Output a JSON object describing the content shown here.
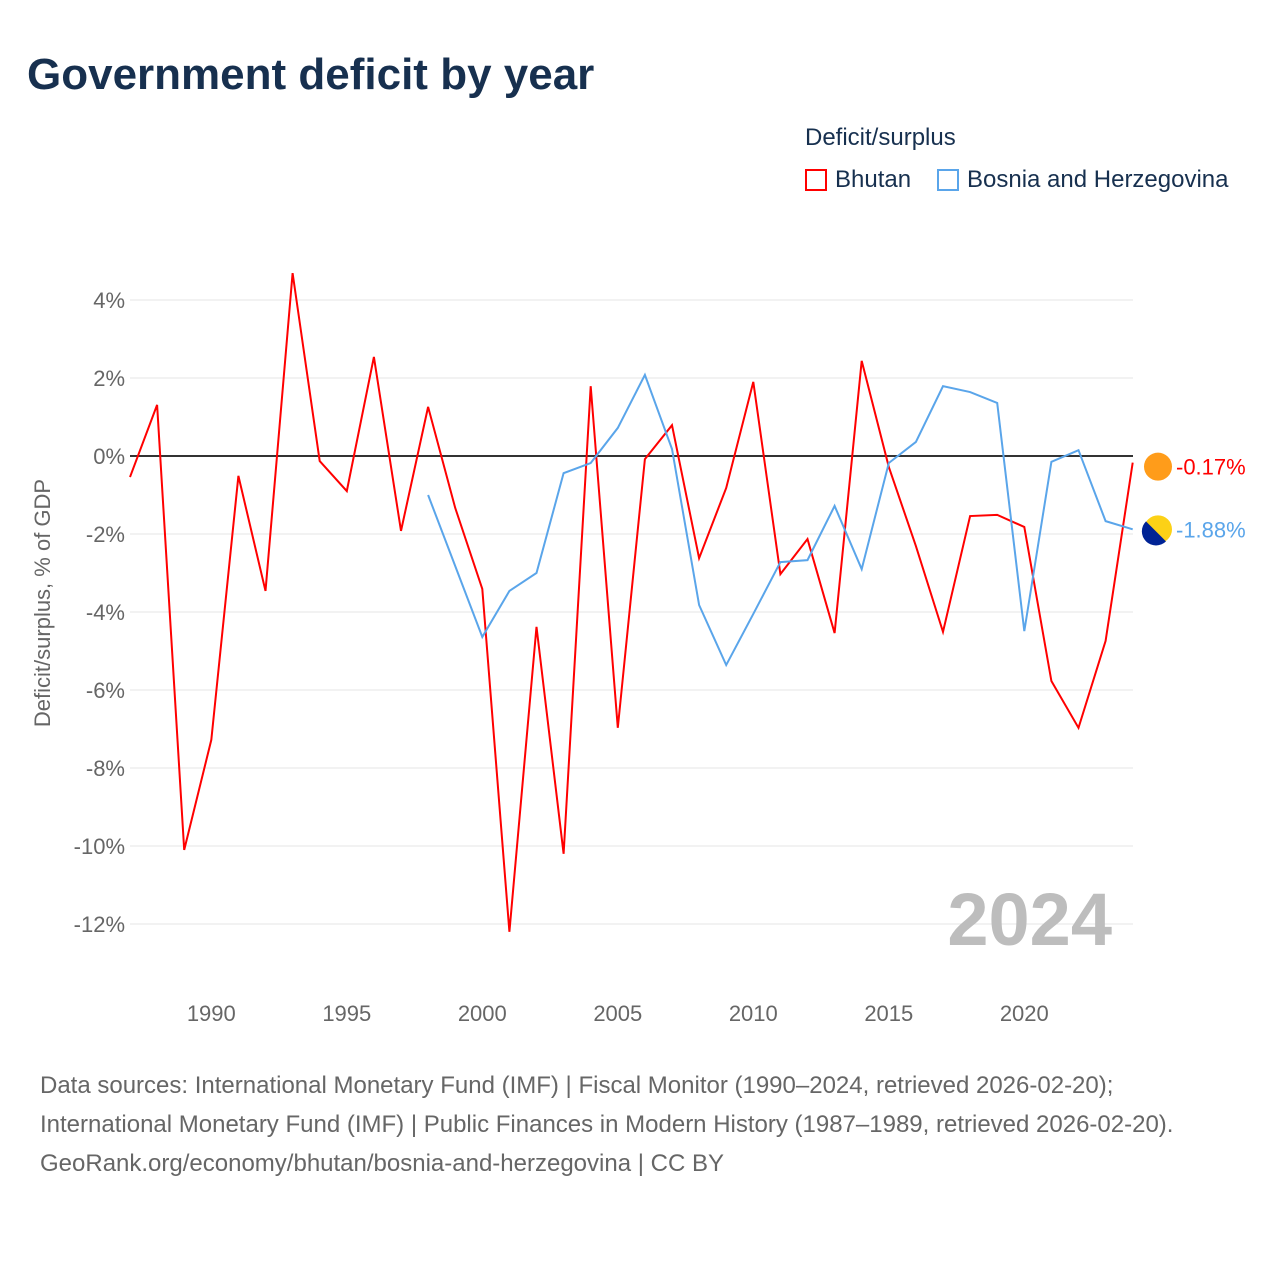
{
  "chart_data": {
    "type": "line",
    "title": "Government deficit by year",
    "ylabel": "Deficit/surplus, % of GDP",
    "xlabel": "",
    "ylim": [
      -13,
      5
    ],
    "xlim": [
      1987,
      2024
    ],
    "yticks": [
      4,
      2,
      0,
      -2,
      -4,
      -6,
      -8,
      -10,
      -12
    ],
    "ytick_labels": [
      "4%",
      "2%",
      "0%",
      "-2%",
      "-4%",
      "-6%",
      "-8%",
      "-10%",
      "-12%"
    ],
    "xticks": [
      1990,
      1995,
      2000,
      2005,
      2010,
      2015,
      2020
    ],
    "xtick_labels": [
      "1990",
      "1995",
      "2000",
      "2005",
      "2010",
      "2015",
      "2020"
    ],
    "grid": true,
    "legend_title": "Deficit/surplus",
    "legend_position": "top-right",
    "year_watermark": "2024",
    "series": [
      {
        "name": "Bhutan",
        "color": "#ff0000",
        "end_label": "-0.17%",
        "x": [
          1987,
          1988,
          1989,
          1990,
          1991,
          1992,
          1993,
          1994,
          1995,
          1996,
          1997,
          1998,
          1999,
          2000,
          2001,
          2002,
          2003,
          2004,
          2005,
          2006,
          2007,
          2008,
          2009,
          2010,
          2011,
          2012,
          2013,
          2014,
          2015,
          2016,
          2017,
          2018,
          2019,
          2020,
          2021,
          2022,
          2023,
          2024
        ],
        "y": [
          -0.54,
          1.31,
          -10.1,
          -7.28,
          -0.51,
          -3.46,
          4.69,
          -0.13,
          -0.9,
          2.54,
          -1.92,
          1.26,
          -1.33,
          -3.41,
          -12.2,
          -4.38,
          -10.2,
          1.79,
          -6.97,
          -0.08,
          0.79,
          -2.62,
          -0.82,
          1.9,
          -3.03,
          -2.13,
          -4.54,
          2.44,
          -0.28,
          -2.31,
          -4.51,
          -1.54,
          -1.51,
          -1.82,
          -5.77,
          -6.97,
          -4.74,
          -0.17
        ]
      },
      {
        "name": "Bosnia and Herzegovina",
        "color": "#5aa5ea",
        "end_label": "-1.88%",
        "x": [
          1998,
          1999,
          2000,
          2001,
          2002,
          2003,
          2004,
          2005,
          2006,
          2007,
          2008,
          2009,
          2010,
          2011,
          2012,
          2013,
          2014,
          2015,
          2016,
          2017,
          2018,
          2019,
          2020,
          2021,
          2022,
          2023,
          2024
        ],
        "y": [
          -1.0,
          -2.82,
          -4.64,
          -3.46,
          -3.0,
          -0.44,
          -0.18,
          0.72,
          2.08,
          0.18,
          -3.82,
          -5.36,
          -4.05,
          -2.72,
          -2.67,
          -1.28,
          -2.9,
          -0.18,
          0.36,
          1.79,
          1.64,
          1.36,
          -4.49,
          -0.15,
          0.15,
          -1.67,
          -1.88
        ]
      }
    ]
  },
  "sources": {
    "line1": "Data sources: International Monetary Fund (IMF) | Fiscal Monitor (1990–2024, retrieved 2026-02-20); International Monetary Fund (IMF) | Public Finances in Modern History (1987–1989, retrieved 2026-02-20).",
    "line2": "GeoRank.org/economy/bhutan/bosnia-and-herzegovina | CC BY"
  }
}
